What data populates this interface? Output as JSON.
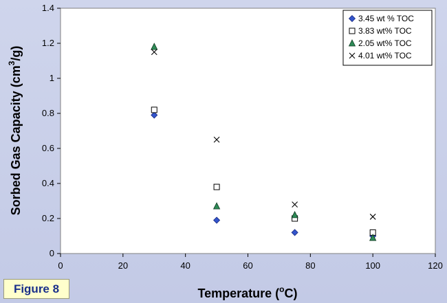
{
  "chart_data": {
    "type": "scatter",
    "title": "",
    "xlabel": "Temperature (",
    "xlabel_sup": "o",
    "xlabel_end": "C)",
    "ylabel": "Sorbed Gas Capacity (cm",
    "ylabel_sup": "3",
    "ylabel_end": "/g)",
    "xlim": [
      0,
      120
    ],
    "ylim": [
      0,
      1.4
    ],
    "xticks": [
      "0",
      "20",
      "40",
      "60",
      "80",
      "100",
      "120"
    ],
    "yticks": [
      "0",
      "0.2",
      "0.4",
      "0.6",
      "0.8",
      "1",
      "1.2",
      "1.4"
    ],
    "grid": false,
    "legend_position": "top-right",
    "series": [
      {
        "name": "3.45 wt % TOC",
        "marker": "diamond",
        "color": "#3355cc",
        "x": [
          30,
          50,
          75,
          100
        ],
        "y": [
          0.79,
          0.19,
          0.12,
          0.1
        ]
      },
      {
        "name": "3.83 wt% TOC",
        "marker": "square",
        "color": "#ffffff",
        "x": [
          30,
          50,
          75,
          100
        ],
        "y": [
          0.82,
          0.38,
          0.2,
          0.12
        ]
      },
      {
        "name": "2.05 wt% TOC",
        "marker": "triangle",
        "color": "#2e8b57",
        "x": [
          30,
          50,
          75,
          100
        ],
        "y": [
          1.18,
          0.27,
          0.22,
          0.09
        ]
      },
      {
        "name": "4.01 wt% TOC",
        "marker": "cross",
        "color": "#000000",
        "x": [
          30,
          50,
          75,
          100
        ],
        "y": [
          1.15,
          0.65,
          0.28,
          0.21
        ]
      }
    ]
  },
  "figure_label": "Figure 8",
  "colors": {
    "background": "#c9cfe9",
    "plot_area": "#ffffff",
    "badge_bg": "#ffffcc",
    "badge_text": "#1a2f8a"
  }
}
